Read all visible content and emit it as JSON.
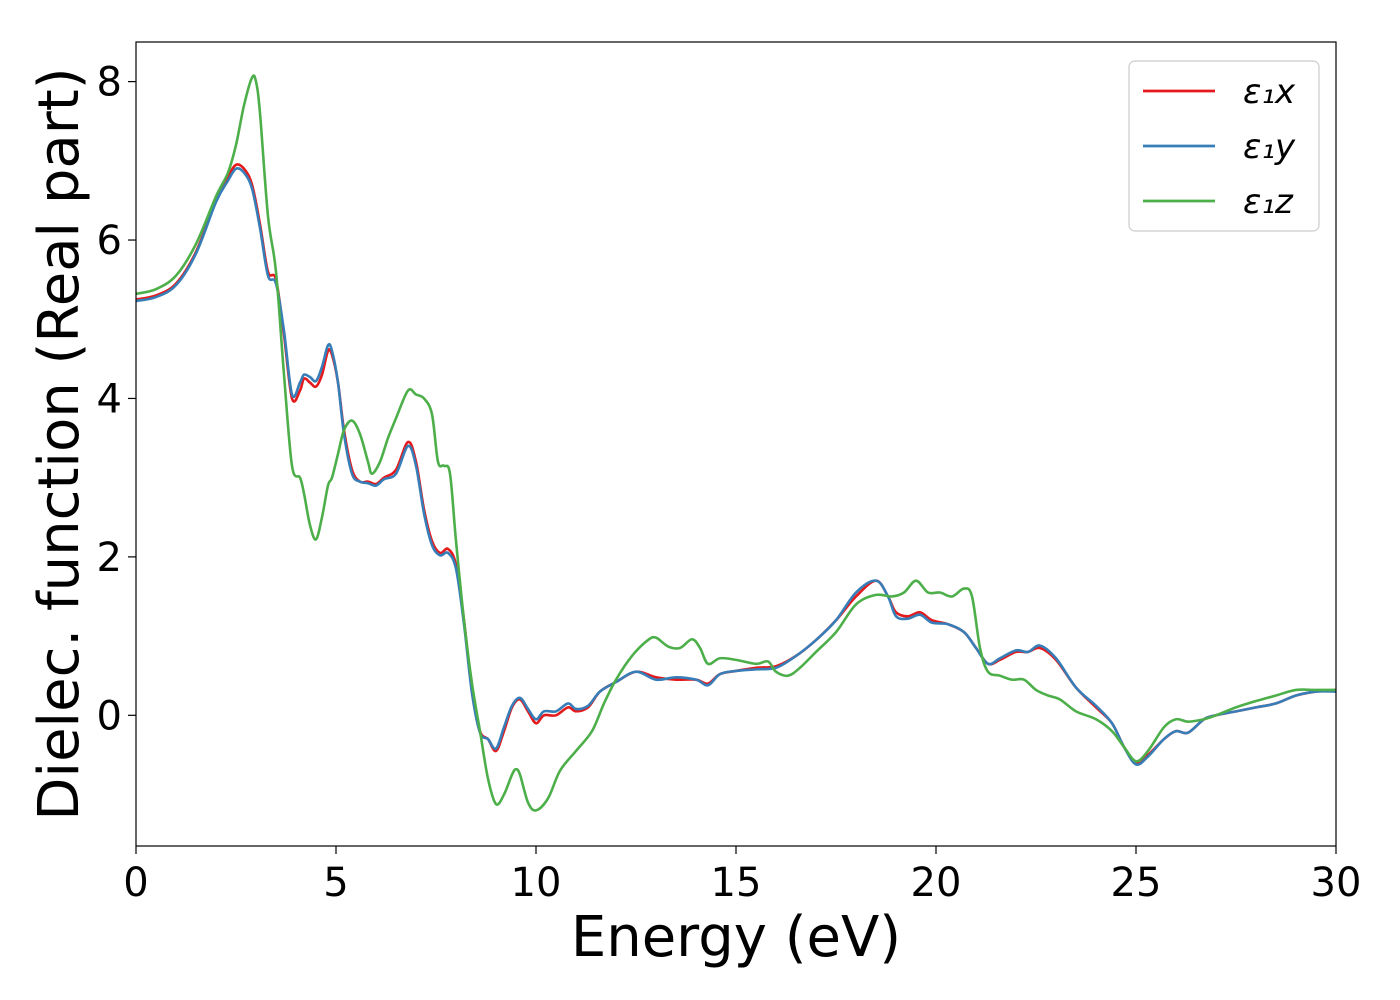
{
  "chart_data": {
    "type": "line",
    "xlabel": "Energy (eV)",
    "ylabel": "Dielec. function (Real part)",
    "xlim": [
      0,
      30
    ],
    "ylim": [
      -1.65,
      8.5
    ],
    "xticks": [
      0,
      5,
      10,
      15,
      20,
      25,
      30
    ],
    "yticks": [
      0,
      2,
      4,
      6,
      8
    ],
    "grid": false,
    "legend_position": "top-right",
    "series": [
      {
        "name": "ε₁x",
        "color": "#e41a1c",
        "points": [
          [
            0,
            5.25
          ],
          [
            0.5,
            5.3
          ],
          [
            1,
            5.45
          ],
          [
            1.5,
            5.85
          ],
          [
            2,
            6.5
          ],
          [
            2.3,
            6.8
          ],
          [
            2.5,
            6.95
          ],
          [
            2.7,
            6.9
          ],
          [
            2.9,
            6.7
          ],
          [
            3.1,
            6.2
          ],
          [
            3.3,
            5.6
          ],
          [
            3.5,
            5.5
          ],
          [
            3.7,
            4.8
          ],
          [
            3.9,
            4.0
          ],
          [
            4.1,
            4.1
          ],
          [
            4.2,
            4.25
          ],
          [
            4.35,
            4.2
          ],
          [
            4.5,
            4.15
          ],
          [
            4.65,
            4.3
          ],
          [
            4.8,
            4.6
          ],
          [
            4.9,
            4.55
          ],
          [
            5.05,
            4.2
          ],
          [
            5.2,
            3.6
          ],
          [
            5.4,
            3.1
          ],
          [
            5.6,
            2.95
          ],
          [
            5.8,
            2.95
          ],
          [
            6.0,
            2.92
          ],
          [
            6.2,
            3.0
          ],
          [
            6.5,
            3.1
          ],
          [
            6.8,
            3.45
          ],
          [
            7.0,
            3.2
          ],
          [
            7.2,
            2.6
          ],
          [
            7.4,
            2.2
          ],
          [
            7.6,
            2.05
          ],
          [
            7.8,
            2.1
          ],
          [
            8.0,
            1.9
          ],
          [
            8.2,
            1.2
          ],
          [
            8.4,
            0.3
          ],
          [
            8.6,
            -0.2
          ],
          [
            8.8,
            -0.3
          ],
          [
            9.0,
            -0.45
          ],
          [
            9.2,
            -0.2
          ],
          [
            9.4,
            0.1
          ],
          [
            9.6,
            0.2
          ],
          [
            9.8,
            0.05
          ],
          [
            10.0,
            -0.1
          ],
          [
            10.2,
            0.0
          ],
          [
            10.5,
            0.0
          ],
          [
            10.8,
            0.1
          ],
          [
            11.0,
            0.05
          ],
          [
            11.3,
            0.1
          ],
          [
            11.6,
            0.3
          ],
          [
            12.0,
            0.42
          ],
          [
            12.5,
            0.55
          ],
          [
            13.0,
            0.48
          ],
          [
            13.5,
            0.45
          ],
          [
            14.0,
            0.45
          ],
          [
            14.3,
            0.4
          ],
          [
            14.6,
            0.52
          ],
          [
            15.0,
            0.56
          ],
          [
            15.5,
            0.6
          ],
          [
            16.0,
            0.62
          ],
          [
            16.5,
            0.75
          ],
          [
            17.0,
            0.95
          ],
          [
            17.5,
            1.2
          ],
          [
            18.0,
            1.5
          ],
          [
            18.5,
            1.7
          ],
          [
            18.8,
            1.5
          ],
          [
            19.0,
            1.3
          ],
          [
            19.3,
            1.25
          ],
          [
            19.6,
            1.3
          ],
          [
            19.9,
            1.2
          ],
          [
            20.3,
            1.15
          ],
          [
            20.7,
            1.05
          ],
          [
            21.0,
            0.85
          ],
          [
            21.3,
            0.65
          ],
          [
            21.6,
            0.7
          ],
          [
            22.0,
            0.8
          ],
          [
            22.3,
            0.8
          ],
          [
            22.6,
            0.85
          ],
          [
            23.0,
            0.7
          ],
          [
            23.5,
            0.35
          ],
          [
            24.0,
            0.1
          ],
          [
            24.4,
            -0.1
          ],
          [
            24.7,
            -0.4
          ],
          [
            25.0,
            -0.6
          ],
          [
            25.3,
            -0.5
          ],
          [
            25.7,
            -0.3
          ],
          [
            26.0,
            -0.2
          ],
          [
            26.3,
            -0.22
          ],
          [
            26.7,
            -0.05
          ],
          [
            27.0,
            0.0
          ],
          [
            27.5,
            0.05
          ],
          [
            28.0,
            0.1
          ],
          [
            28.5,
            0.15
          ],
          [
            29.0,
            0.25
          ],
          [
            29.5,
            0.3
          ],
          [
            30.0,
            0.32
          ]
        ]
      },
      {
        "name": "ε₁y",
        "color": "#377eb8",
        "points": [
          [
            0,
            5.23
          ],
          [
            0.5,
            5.28
          ],
          [
            1,
            5.43
          ],
          [
            1.5,
            5.83
          ],
          [
            2,
            6.48
          ],
          [
            2.3,
            6.75
          ],
          [
            2.5,
            6.9
          ],
          [
            2.7,
            6.85
          ],
          [
            2.9,
            6.65
          ],
          [
            3.1,
            6.15
          ],
          [
            3.3,
            5.55
          ],
          [
            3.5,
            5.45
          ],
          [
            3.7,
            4.85
          ],
          [
            3.9,
            4.05
          ],
          [
            4.1,
            4.2
          ],
          [
            4.2,
            4.3
          ],
          [
            4.35,
            4.27
          ],
          [
            4.5,
            4.22
          ],
          [
            4.65,
            4.4
          ],
          [
            4.8,
            4.67
          ],
          [
            4.9,
            4.6
          ],
          [
            5.05,
            4.2
          ],
          [
            5.2,
            3.55
          ],
          [
            5.4,
            3.05
          ],
          [
            5.6,
            2.95
          ],
          [
            5.8,
            2.93
          ],
          [
            6.0,
            2.9
          ],
          [
            6.2,
            2.98
          ],
          [
            6.5,
            3.05
          ],
          [
            6.8,
            3.4
          ],
          [
            7.0,
            3.15
          ],
          [
            7.2,
            2.55
          ],
          [
            7.4,
            2.15
          ],
          [
            7.6,
            2.02
          ],
          [
            7.8,
            2.05
          ],
          [
            8.0,
            1.85
          ],
          [
            8.2,
            1.15
          ],
          [
            8.4,
            0.28
          ],
          [
            8.6,
            -0.22
          ],
          [
            8.8,
            -0.3
          ],
          [
            9.0,
            -0.42
          ],
          [
            9.2,
            -0.15
          ],
          [
            9.4,
            0.12
          ],
          [
            9.6,
            0.22
          ],
          [
            9.8,
            0.08
          ],
          [
            10.0,
            -0.05
          ],
          [
            10.2,
            0.05
          ],
          [
            10.5,
            0.05
          ],
          [
            10.8,
            0.15
          ],
          [
            11.0,
            0.08
          ],
          [
            11.3,
            0.12
          ],
          [
            11.6,
            0.3
          ],
          [
            12.0,
            0.42
          ],
          [
            12.5,
            0.55
          ],
          [
            13.0,
            0.45
          ],
          [
            13.5,
            0.48
          ],
          [
            14.0,
            0.45
          ],
          [
            14.3,
            0.38
          ],
          [
            14.6,
            0.52
          ],
          [
            15.0,
            0.56
          ],
          [
            15.5,
            0.58
          ],
          [
            16.0,
            0.6
          ],
          [
            16.5,
            0.75
          ],
          [
            17.0,
            0.95
          ],
          [
            17.5,
            1.2
          ],
          [
            18.0,
            1.55
          ],
          [
            18.5,
            1.7
          ],
          [
            18.8,
            1.5
          ],
          [
            19.0,
            1.25
          ],
          [
            19.3,
            1.22
          ],
          [
            19.6,
            1.27
          ],
          [
            19.9,
            1.17
          ],
          [
            20.3,
            1.15
          ],
          [
            20.7,
            1.05
          ],
          [
            21.0,
            0.85
          ],
          [
            21.3,
            0.65
          ],
          [
            21.6,
            0.72
          ],
          [
            22.0,
            0.82
          ],
          [
            22.3,
            0.8
          ],
          [
            22.6,
            0.88
          ],
          [
            23.0,
            0.72
          ],
          [
            23.5,
            0.35
          ],
          [
            24.0,
            0.12
          ],
          [
            24.4,
            -0.1
          ],
          [
            24.7,
            -0.4
          ],
          [
            25.0,
            -0.62
          ],
          [
            25.3,
            -0.52
          ],
          [
            25.7,
            -0.3
          ],
          [
            26.0,
            -0.2
          ],
          [
            26.3,
            -0.22
          ],
          [
            26.7,
            -0.05
          ],
          [
            27.0,
            0.0
          ],
          [
            27.5,
            0.05
          ],
          [
            28.0,
            0.1
          ],
          [
            28.5,
            0.15
          ],
          [
            29.0,
            0.25
          ],
          [
            29.5,
            0.3
          ],
          [
            30.0,
            0.3
          ]
        ]
      },
      {
        "name": "ε₁z",
        "color": "#4daf4a",
        "points": [
          [
            0,
            5.32
          ],
          [
            0.5,
            5.38
          ],
          [
            1,
            5.55
          ],
          [
            1.5,
            5.95
          ],
          [
            2,
            6.55
          ],
          [
            2.3,
            6.85
          ],
          [
            2.5,
            7.2
          ],
          [
            2.7,
            7.7
          ],
          [
            2.9,
            8.05
          ],
          [
            3.0,
            8.0
          ],
          [
            3.1,
            7.6
          ],
          [
            3.3,
            6.3
          ],
          [
            3.5,
            5.6
          ],
          [
            3.7,
            4.3
          ],
          [
            3.9,
            3.15
          ],
          [
            4.1,
            3.0
          ],
          [
            4.2,
            2.8
          ],
          [
            4.35,
            2.4
          ],
          [
            4.5,
            2.22
          ],
          [
            4.65,
            2.5
          ],
          [
            4.8,
            2.9
          ],
          [
            4.9,
            3.0
          ],
          [
            5.05,
            3.3
          ],
          [
            5.2,
            3.6
          ],
          [
            5.4,
            3.72
          ],
          [
            5.6,
            3.55
          ],
          [
            5.8,
            3.2
          ],
          [
            5.9,
            3.05
          ],
          [
            6.1,
            3.2
          ],
          [
            6.3,
            3.5
          ],
          [
            6.5,
            3.75
          ],
          [
            6.8,
            4.1
          ],
          [
            7.0,
            4.05
          ],
          [
            7.2,
            4.0
          ],
          [
            7.4,
            3.8
          ],
          [
            7.55,
            3.2
          ],
          [
            7.7,
            3.15
          ],
          [
            7.85,
            3.05
          ],
          [
            8.0,
            2.2
          ],
          [
            8.2,
            1.2
          ],
          [
            8.4,
            0.4
          ],
          [
            8.6,
            -0.2
          ],
          [
            8.8,
            -0.8
          ],
          [
            9.0,
            -1.12
          ],
          [
            9.2,
            -1.0
          ],
          [
            9.4,
            -0.75
          ],
          [
            9.5,
            -0.68
          ],
          [
            9.6,
            -0.75
          ],
          [
            9.8,
            -1.1
          ],
          [
            10.0,
            -1.2
          ],
          [
            10.3,
            -1.05
          ],
          [
            10.6,
            -0.7
          ],
          [
            11.0,
            -0.45
          ],
          [
            11.4,
            -0.2
          ],
          [
            11.7,
            0.15
          ],
          [
            12.0,
            0.45
          ],
          [
            12.4,
            0.75
          ],
          [
            12.8,
            0.95
          ],
          [
            13.0,
            0.98
          ],
          [
            13.3,
            0.87
          ],
          [
            13.6,
            0.85
          ],
          [
            13.9,
            0.96
          ],
          [
            14.1,
            0.85
          ],
          [
            14.3,
            0.65
          ],
          [
            14.6,
            0.72
          ],
          [
            15.0,
            0.7
          ],
          [
            15.5,
            0.65
          ],
          [
            15.8,
            0.68
          ],
          [
            16.0,
            0.55
          ],
          [
            16.3,
            0.5
          ],
          [
            16.6,
            0.6
          ],
          [
            17.0,
            0.8
          ],
          [
            17.5,
            1.05
          ],
          [
            18.0,
            1.4
          ],
          [
            18.5,
            1.52
          ],
          [
            18.9,
            1.5
          ],
          [
            19.2,
            1.55
          ],
          [
            19.5,
            1.7
          ],
          [
            19.8,
            1.55
          ],
          [
            20.1,
            1.55
          ],
          [
            20.4,
            1.5
          ],
          [
            20.7,
            1.6
          ],
          [
            20.9,
            1.5
          ],
          [
            21.1,
            0.85
          ],
          [
            21.3,
            0.55
          ],
          [
            21.6,
            0.5
          ],
          [
            21.9,
            0.45
          ],
          [
            22.2,
            0.45
          ],
          [
            22.5,
            0.32
          ],
          [
            22.8,
            0.25
          ],
          [
            23.1,
            0.2
          ],
          [
            23.5,
            0.05
          ],
          [
            24.0,
            -0.05
          ],
          [
            24.4,
            -0.2
          ],
          [
            24.7,
            -0.4
          ],
          [
            25.0,
            -0.58
          ],
          [
            25.3,
            -0.45
          ],
          [
            25.7,
            -0.15
          ],
          [
            26.0,
            -0.05
          ],
          [
            26.3,
            -0.08
          ],
          [
            26.7,
            -0.05
          ],
          [
            27.0,
            0.0
          ],
          [
            27.5,
            0.1
          ],
          [
            28.0,
            0.18
          ],
          [
            28.5,
            0.25
          ],
          [
            29.0,
            0.32
          ],
          [
            29.5,
            0.32
          ],
          [
            30.0,
            0.32
          ]
        ]
      }
    ]
  }
}
